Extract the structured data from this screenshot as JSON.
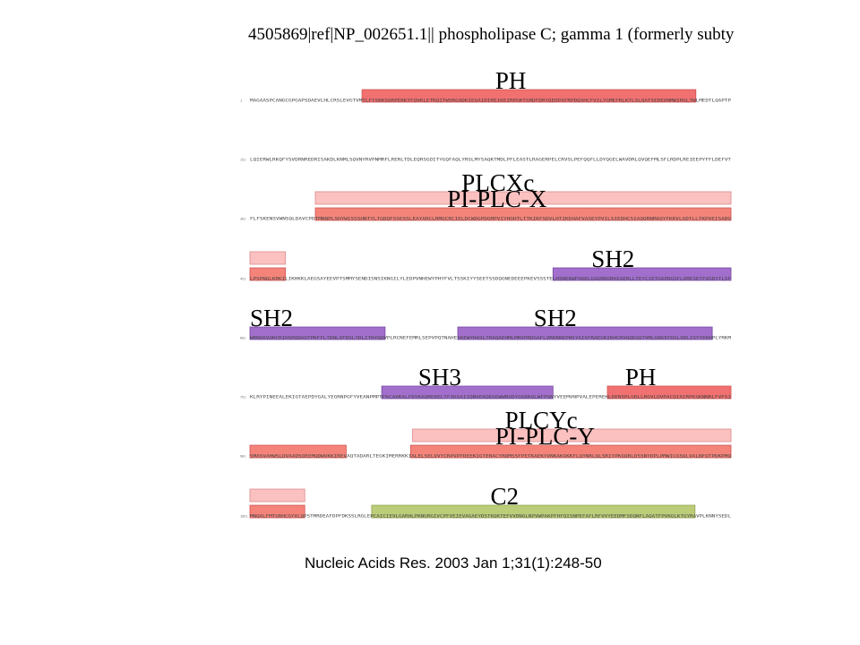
{
  "header": {
    "title": "4505869|ref|NP_002651.1|| phospholipase C; gamma 1 (formerly subty"
  },
  "colors": {
    "PH": "#f06666",
    "PI-PLC": "#f47a6e",
    "PLC-light": "#fbbcbc",
    "SH2": "#9b63c9",
    "SH3": "#9b63c9",
    "C2": "#b7c96e"
  },
  "rows": [
    {
      "number": "1",
      "sequence": "MAGAASPCANGCGPGAPSDAEVLHLCRSLEVGTVMTLFYSKKSQRPERKTFQVKLETRQITWSRGADKIEGAIDIREIKEIRPGKTSRDFDRYQEDPAFRPDQSHCFVILYGMEFRLKTLSLQATSEDEVNMWIRGLTWLMEDTLQAPTP",
      "domains": [
        {
          "label": "PH",
          "color_key": "PH",
          "from": 0.233,
          "to": 0.927,
          "label_at": 0.51
        }
      ]
    },
    {
      "number": "151",
      "sequence": "LQIERWLRKQFYSVDRNREDRISAKDLKNMLSQVNYRVPNMRFLRERLTDLEQRSGDITYGQFAQLYRSLMYSAQKTMDLPFLEASTLRAGERPELCRVSLPEFQQFLLDYQGELWAVDRLQVQEFMLSFLRDPLREIEEPYFFLDEFVT",
      "domains": []
    },
    {
      "number": "301",
      "sequence": "FLFSKENSVWNSQLDAVCPDTMNNPLSHYWISSSHNTYLTGDQFSSESSLEAYARCLRMGCRCIELDCWDGPDGMPVIYHGHTLTTKIKFSDVLHTIKEHAFVASEYPVILSIEDHCSIAQQRNMAQYFKKVLGDTLLTKPVEISADG",
      "domains": [
        {
          "label": "PLCXc",
          "color_key": "PLC-light",
          "from": 0.136,
          "to": 1.0,
          "label_at": 0.44
        },
        {
          "label": "PI-PLC-X",
          "color_key": "PI-PLC",
          "from": 0.136,
          "to": 1.0,
          "label_at": 0.41
        }
      ]
    },
    {
      "number": "451",
      "sequence": "LPSPNQLKRKILIKHKKLAEGSAYEEVPTSMMYSENDISNSIKNGILYLEDPVNHEWYPHYFVLTSSKIYYSEETSSDQGNEDEEEPKEVSSSTELHSNEKWFHGKLGAGRDGRHIAERLLTEYCIETGAPDGSFLVRESETFVGDYTLSF",
      "domains": [
        {
          "label": "",
          "color_key": "PLC-light",
          "from": 0.0,
          "to": 0.074,
          "label_at": 0
        },
        {
          "label": "",
          "color_key": "PI-PLC",
          "from": 0.0,
          "to": 0.074,
          "label_at": 0
        },
        {
          "label": "SH2",
          "color_key": "SH2",
          "from": 0.63,
          "to": 1.0,
          "label_at": 0.71
        }
      ]
    },
    {
      "number": "601",
      "sequence": "WRNGKVQHCRIHSRQDAGTPKFFLTDNLVFDSLYDLITHYQQVPLRCNEFEMRLSEPVPQTNAHESKEWYHASLTRAQAEHMLMRVPRDGAFLVRKRNEPNSYAISFRAEGKIKHCRVQQEGQTVMLGNSEFDSLVDLISYYEKHPLYRKM",
      "domains": [
        {
          "label": "SH2",
          "color_key": "SH2",
          "from": 0.0,
          "to": 0.281,
          "label_at": 0
        },
        {
          "label": "SH2",
          "color_key": "SH2",
          "from": 0.432,
          "to": 0.961,
          "label_at": 0.59
        }
      ]
    },
    {
      "number": "751",
      "sequence": "KLRYPINEEALEKIGTAEPDYGALYEGRNPGFYVEANPMPTFKCAVKALFDYKAQREDELTFIKSAIIQNVEKQEGGWWRGDYGGKKQLWFPSNYVEEMVNPVALEPEREHLDENSPLGDLLRGVLDVPACQIAIRPEGKNNRLFVFSI",
      "domains": [
        {
          "label": "SH3",
          "color_key": "SH3",
          "from": 0.274,
          "to": 0.63,
          "label_at": 0.35
        },
        {
          "label": "PH",
          "color_key": "PH",
          "from": 0.743,
          "to": 1.0,
          "label_at": 0.78
        }
      ]
    },
    {
      "number": "901",
      "sequence": "SMASVAHWSLDVAADSQEEMQDWVKKIREVAQTADARLTEGKIMERRKKIALELSELVVYCRPVPFDEEKIGTERACYRDMSSFPETKAEKYVNKAKGKKFLQYNRLQLSRIYPKGQRLDSSNYDPLPMWICGSQLVALNFQTPDKPMQ",
      "domains": [
        {
          "label": "",
          "color_key": "PI-PLC",
          "from": 0.0,
          "to": 0.2,
          "label_at": 0
        },
        {
          "label": "PLCYc",
          "color_key": "PLC-light",
          "from": 0.338,
          "to": 1.0,
          "label_at": 0.53
        },
        {
          "label": "PI-PLC-Y",
          "color_key": "PI-PLC",
          "from": 0.334,
          "to": 1.0,
          "label_at": 0.51
        }
      ]
    },
    {
      "number": "1051",
      "sequence": "MNQALFMTGRHCGYVLQPSTMRDEAFDPFDKSSLRGLEPCAICIEVLGARHLPKNGRGIVCPFVEIEVAGAEYDSTKQKTEFVVDNGLNPVWPAKPFHFQISNPEFAFLRFVVYEEDMFSDQNFLAQATFPVKGLKTGYRAVPLKNNYSEDL",
      "domains": [
        {
          "label": "",
          "color_key": "PLC-light",
          "from": 0.0,
          "to": 0.114,
          "label_at": 0
        },
        {
          "label": "",
          "color_key": "PI-PLC",
          "from": 0.0,
          "to": 0.114,
          "label_at": 0
        },
        {
          "label": "C2",
          "color_key": "C2",
          "from": 0.253,
          "to": 0.925,
          "label_at": 0.5
        }
      ]
    }
  ],
  "caption": "Nucleic Acids Res. 2003 Jan 1;31(1):248-50"
}
